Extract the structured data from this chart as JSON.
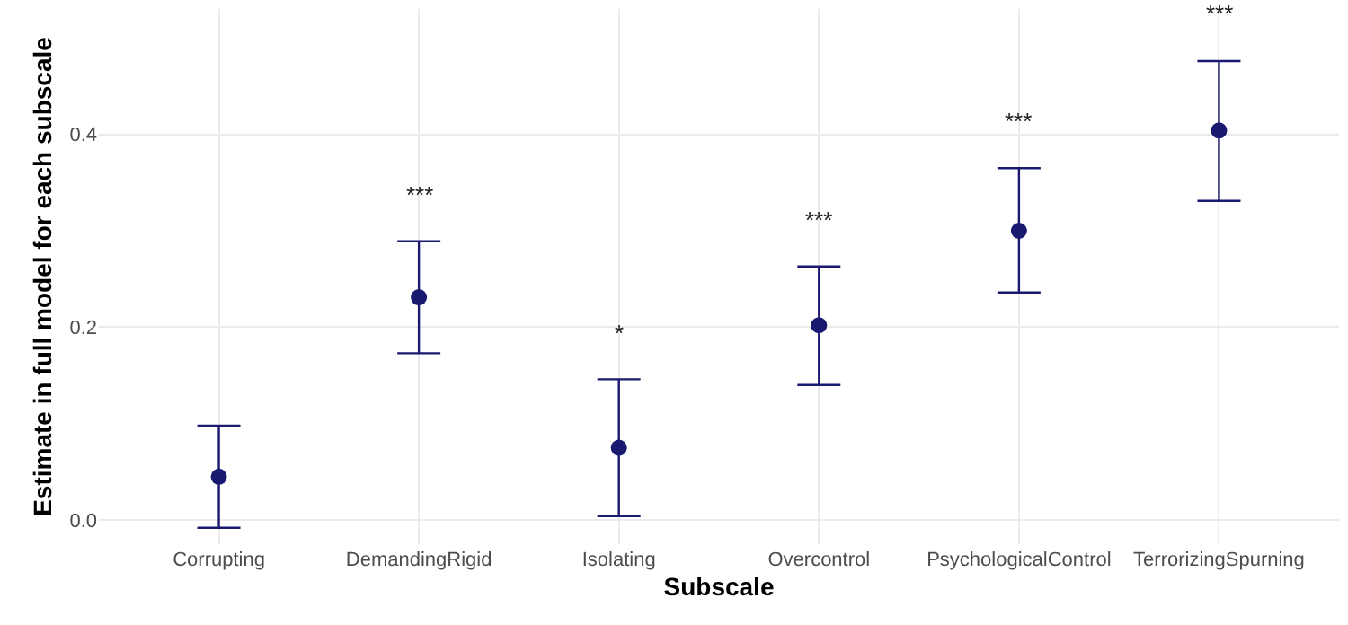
{
  "chart_data": {
    "type": "scatter",
    "xlabel": "Subscale",
    "ylabel": "Estimate in full model for each subscale",
    "categories": [
      "Corrupting",
      "DemandingRigid",
      "Isolating",
      "Overcontrol",
      "PsychologicalControl",
      "TerrorizingSpurning"
    ],
    "values": [
      0.045,
      0.231,
      0.075,
      0.202,
      0.3,
      0.404
    ],
    "errors": [
      [
        -0.008,
        0.098
      ],
      [
        0.173,
        0.289
      ],
      [
        0.004,
        0.146
      ],
      [
        0.14,
        0.263
      ],
      [
        0.236,
        0.365
      ],
      [
        0.331,
        0.476
      ]
    ],
    "color": "#191970",
    "marker": "circle",
    "ylim": [
      -0.025,
      0.53
    ],
    "yticks": [
      {
        "value": 0,
        "label": "0.0"
      },
      0.2,
      0.4
    ],
    "grid": true,
    "annotations": [
      "***",
      "*",
      "***",
      "***",
      "***"
    ]
  }
}
